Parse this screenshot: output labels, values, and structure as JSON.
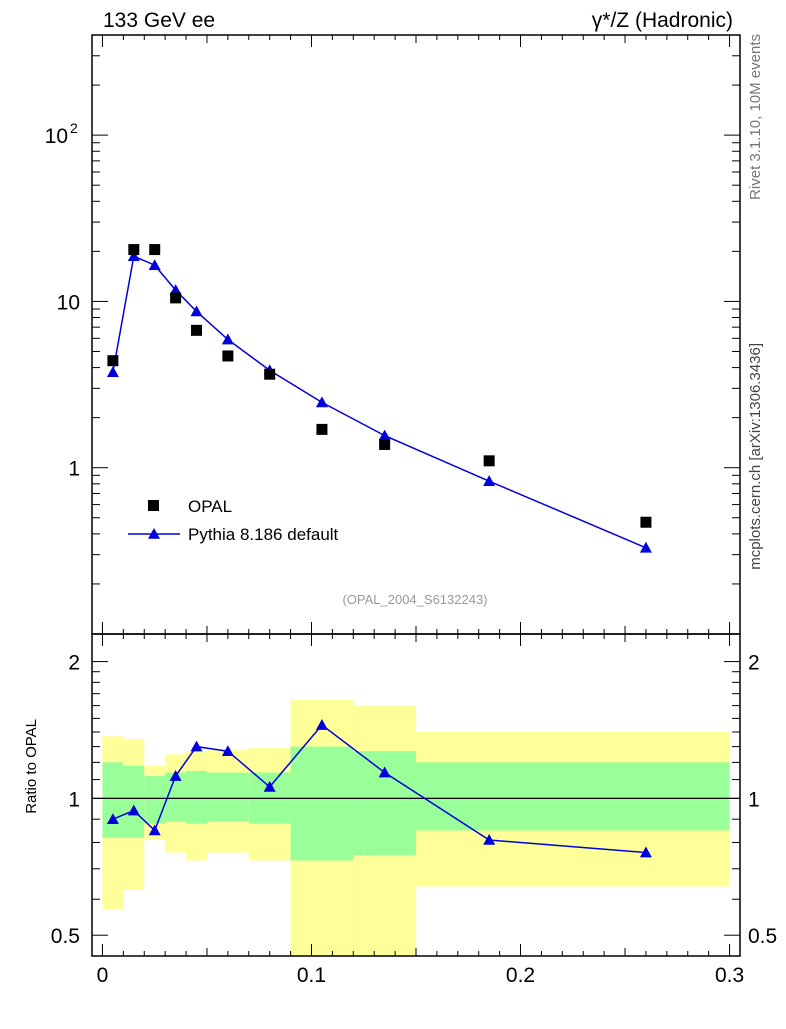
{
  "header": {
    "left": "133 GeV ee",
    "right": "γ*/Z (Hadronic)"
  },
  "side_labels": {
    "rivet": "Rivet 3.1.10,  10M events",
    "mcplots": "mcplots.cern.ch [arXiv:1306.3436]"
  },
  "colors": {
    "mc": "#0000dd",
    "band_inner": "#99ff99",
    "band_outer": "#ffff99",
    "data": "#000000",
    "watermark": "#999999"
  },
  "chart_data": [
    {
      "type": "line",
      "panel": "main",
      "title": "",
      "xlabel": "",
      "ylabel": "",
      "yscale": "log",
      "xlim": [
        -0.005,
        0.305
      ],
      "ylim": [
        0.1,
        400
      ],
      "y_ticks": [
        {
          "value": 1,
          "label": "1"
        },
        {
          "value": 10,
          "label": "10"
        },
        {
          "value": 100,
          "label": "10",
          "sup": "2"
        }
      ],
      "watermark": "(OPAL_2004_S6132243)",
      "legend": {
        "position": "bottom-left",
        "entries": [
          {
            "name": "OPAL",
            "marker": "square"
          },
          {
            "name": "Pythia 8.186 default",
            "marker": "triangle-line"
          }
        ]
      },
      "series": [
        {
          "name": "OPAL",
          "style": "markers",
          "x": [
            0.005,
            0.015,
            0.025,
            0.035,
            0.045,
            0.06,
            0.08,
            0.105,
            0.135,
            0.185,
            0.26
          ],
          "y": [
            4.4,
            20.5,
            20.5,
            10.5,
            6.7,
            4.7,
            3.65,
            1.7,
            1.38,
            1.1,
            0.47
          ]
        },
        {
          "name": "Pythia 8.186 default",
          "style": "line-triangles",
          "x": [
            0.005,
            0.015,
            0.025,
            0.035,
            0.045,
            0.06,
            0.08,
            0.105,
            0.135,
            0.185,
            0.26
          ],
          "y": [
            3.75,
            18.7,
            16.5,
            11.7,
            8.7,
            5.9,
            3.85,
            2.47,
            1.56,
            0.83,
            0.33
          ]
        }
      ]
    },
    {
      "type": "line",
      "panel": "ratio",
      "ylabel": "Ratio to OPAL",
      "yscale": "log",
      "xlim": [
        -0.005,
        0.305
      ],
      "ylim": [
        0.45,
        2.3
      ],
      "reference_line": 1,
      "y_ticks": [
        {
          "value": 0.5,
          "label": "0.5"
        },
        {
          "value": 1,
          "label": "1"
        },
        {
          "value": 2,
          "label": "2"
        }
      ],
      "x_ticks": [
        {
          "value": 0,
          "label": "0"
        },
        {
          "value": 0.1,
          "label": "0.1"
        },
        {
          "value": 0.2,
          "label": "0.2"
        },
        {
          "value": 0.3,
          "label": "0.3"
        }
      ],
      "bands": [
        {
          "x0": 0.0,
          "x1": 0.01,
          "inner_lo": 0.82,
          "inner_hi": 1.2,
          "outer_lo": 0.57,
          "outer_hi": 1.37
        },
        {
          "x0": 0.01,
          "x1": 0.02,
          "inner_lo": 0.82,
          "inner_hi": 1.18,
          "outer_lo": 0.63,
          "outer_hi": 1.35
        },
        {
          "x0": 0.02,
          "x1": 0.03,
          "inner_lo": 0.88,
          "inner_hi": 1.12,
          "outer_lo": 0.81,
          "outer_hi": 1.18
        },
        {
          "x0": 0.03,
          "x1": 0.04,
          "inner_lo": 0.89,
          "inner_hi": 1.14,
          "outer_lo": 0.76,
          "outer_hi": 1.25
        },
        {
          "x0": 0.04,
          "x1": 0.05,
          "inner_lo": 0.88,
          "inner_hi": 1.15,
          "outer_lo": 0.73,
          "outer_hi": 1.27
        },
        {
          "x0": 0.05,
          "x1": 0.07,
          "inner_lo": 0.89,
          "inner_hi": 1.14,
          "outer_lo": 0.76,
          "outer_hi": 1.28
        },
        {
          "x0": 0.07,
          "x1": 0.09,
          "inner_lo": 0.88,
          "inner_hi": 1.14,
          "outer_lo": 0.73,
          "outer_hi": 1.29
        },
        {
          "x0": 0.09,
          "x1": 0.12,
          "inner_lo": 0.73,
          "inner_hi": 1.3,
          "outer_lo": 0.3,
          "outer_hi": 1.65
        },
        {
          "x0": 0.12,
          "x1": 0.15,
          "inner_lo": 0.75,
          "inner_hi": 1.27,
          "outer_lo": 0.37,
          "outer_hi": 1.6
        },
        {
          "x0": 0.15,
          "x1": 0.3,
          "inner_lo": 0.85,
          "inner_hi": 1.2,
          "outer_lo": 0.64,
          "outer_hi": 1.4
        }
      ],
      "series": [
        {
          "name": "Pythia 8.186 default / OPAL",
          "x": [
            0.005,
            0.015,
            0.025,
            0.035,
            0.045,
            0.06,
            0.08,
            0.105,
            0.135,
            0.185,
            0.26
          ],
          "y": [
            0.9,
            0.94,
            0.85,
            1.12,
            1.3,
            1.27,
            1.06,
            1.45,
            1.14,
            0.81,
            0.76
          ]
        }
      ]
    }
  ]
}
